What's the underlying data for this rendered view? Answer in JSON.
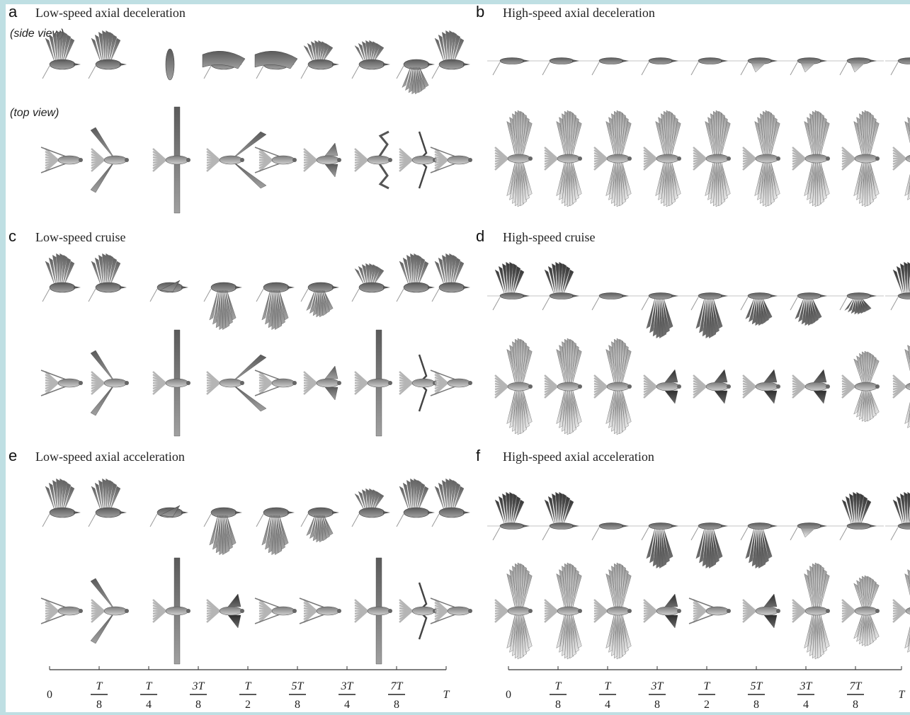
{
  "colors": {
    "frame_border": "#bfdfe3",
    "background": "#ffffff",
    "bird_dark": "#3b3b3b",
    "bird_mid": "#7a7a7a",
    "bird_light": "#c9c9c9",
    "axis": "#333333"
  },
  "panels": [
    {
      "letter": "a",
      "title": "Low-speed axial deceleration",
      "side_view_label": "(side view)",
      "top_view_label": "(top view)",
      "speed": "low",
      "side_poses": [
        "up-spread",
        "up-spread",
        "folded-vertical",
        "level-spread",
        "level-spread",
        "up-mid",
        "up-mid",
        "down-mid",
        "up-spread"
      ],
      "top_poses": [
        "swept-thin",
        "v-open",
        "vertical-span",
        "v-forward",
        "swept-thin",
        "tucked",
        "zigzag",
        "bracket",
        "swept-thin"
      ]
    },
    {
      "letter": "b",
      "title": "High-speed axial deceleration",
      "speed": "high",
      "side_poses": [
        "flat",
        "flat",
        "flat",
        "flat",
        "flat",
        "flat-down",
        "flat-down",
        "flat-down",
        "flat"
      ],
      "top_poses": [
        "full-span",
        "full-span",
        "full-span",
        "full-span",
        "full-span",
        "full-span",
        "full-span",
        "full-span",
        "full-span"
      ]
    },
    {
      "letter": "c",
      "title": "Low-speed cruise",
      "speed": "low",
      "side_poses": [
        "up-spread",
        "up-spread",
        "folded",
        "down-spread",
        "down-spread",
        "down-mid",
        "up-mid",
        "up-spread",
        "up-spread"
      ],
      "top_poses": [
        "swept-thin",
        "v-open",
        "vertical-span",
        "v-forward",
        "swept-thin",
        "tucked",
        "vertical-span",
        "bracket",
        "swept-thin"
      ]
    },
    {
      "letter": "d",
      "title": "High-speed cruise",
      "speed": "high",
      "side_poses": [
        "up-dark",
        "up-dark",
        "flat",
        "down-full",
        "down-full",
        "down-mid",
        "down-mid",
        "down-small",
        "up-dark"
      ],
      "top_poses": [
        "full-span",
        "full-span",
        "full-span",
        "tucked-dark",
        "tucked-dark",
        "tucked-dark",
        "tucked-dark",
        "mid-span",
        "full-span"
      ]
    },
    {
      "letter": "e",
      "title": "Low-speed axial acceleration",
      "speed": "low",
      "side_poses": [
        "up-spread",
        "up-spread",
        "folded",
        "down-spread",
        "down-spread",
        "down-mid",
        "up-mid",
        "up-spread",
        "up-spread"
      ],
      "top_poses": [
        "swept-thin",
        "v-open",
        "vertical-span",
        "tucked-dark",
        "swept-thin",
        "swept-thin",
        "vertical-span",
        "bracket",
        "swept-thin"
      ]
    },
    {
      "letter": "f",
      "title": "High-speed axial acceleration",
      "speed": "high",
      "side_poses": [
        "up-dark",
        "up-dark",
        "flat",
        "down-full",
        "down-full",
        "down-full",
        "flat-down",
        "up-dark",
        "up-dark"
      ],
      "top_poses": [
        "full-span",
        "full-span",
        "full-span",
        "tucked-dark",
        "swept-thin",
        "tucked-dark",
        "full-span",
        "mid-span",
        "full-span"
      ]
    }
  ],
  "time_axis": {
    "ticks": [
      {
        "type": "plain",
        "text": "0"
      },
      {
        "type": "frac",
        "num": "T",
        "den": "8"
      },
      {
        "type": "frac",
        "num": "T",
        "den": "4"
      },
      {
        "type": "frac",
        "num": "3T",
        "den": "8"
      },
      {
        "type": "frac",
        "num": "T",
        "den": "2"
      },
      {
        "type": "frac",
        "num": "5T",
        "den": "8"
      },
      {
        "type": "frac",
        "num": "3T",
        "den": "4"
      },
      {
        "type": "frac",
        "num": "7T",
        "den": "8"
      },
      {
        "type": "plain",
        "text": "T",
        "italic": true
      }
    ]
  }
}
